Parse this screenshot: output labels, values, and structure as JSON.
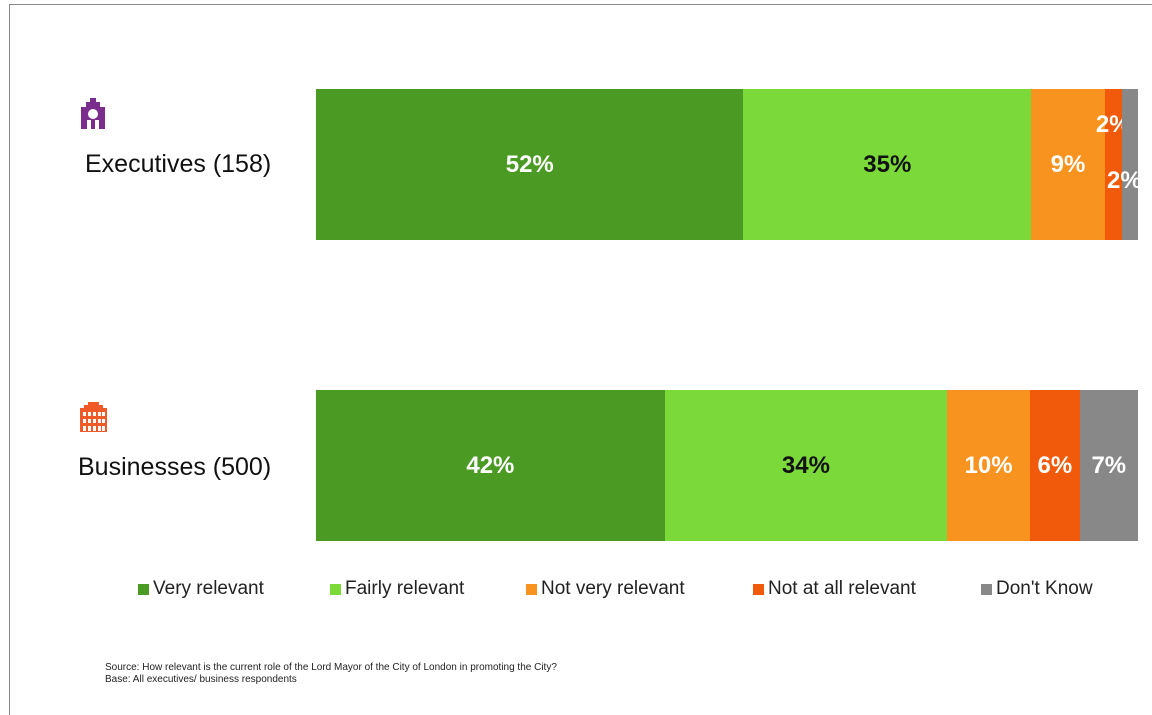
{
  "chart_data": {
    "type": "bar",
    "stacked": true,
    "orientation": "horizontal",
    "categories": [
      "Executives (158)",
      "Businesses (500)"
    ],
    "series": [
      {
        "name": "Very relevant",
        "color": "#4a9a24",
        "values": [
          52,
          42
        ],
        "labels": [
          "52%",
          "42%"
        ]
      },
      {
        "name": "Fairly relevant",
        "color": "#7bd93a",
        "values": [
          35,
          34
        ],
        "labels": [
          "35%",
          "34%"
        ]
      },
      {
        "name": "Not very relevant",
        "color": "#f7931e",
        "values": [
          9,
          10
        ],
        "labels": [
          "9%",
          "10%"
        ]
      },
      {
        "name": "Not at all relevant",
        "color": "#f05a0a",
        "values": [
          2,
          6
        ],
        "labels": [
          "2%",
          "6%"
        ]
      },
      {
        "name": "Don't Know",
        "color": "#888888",
        "values": [
          2,
          7
        ],
        "labels": [
          "2%",
          "7%"
        ]
      }
    ],
    "label_colors": [
      "#ffffff",
      "#111111",
      "#ffffff",
      "#ffffff",
      "#ffffff"
    ],
    "legend_position": "bottom"
  },
  "icons": [
    "executive-icon",
    "business-building-icon"
  ],
  "icon_colors": {
    "executives": "#7b2d8e",
    "businesses": "#f05a28"
  },
  "source": {
    "line1": "Source: How relevant is the current role of the Lord Mayor of the City of London in promoting the City?",
    "line2": "Base:  All executives/ business respondents"
  }
}
